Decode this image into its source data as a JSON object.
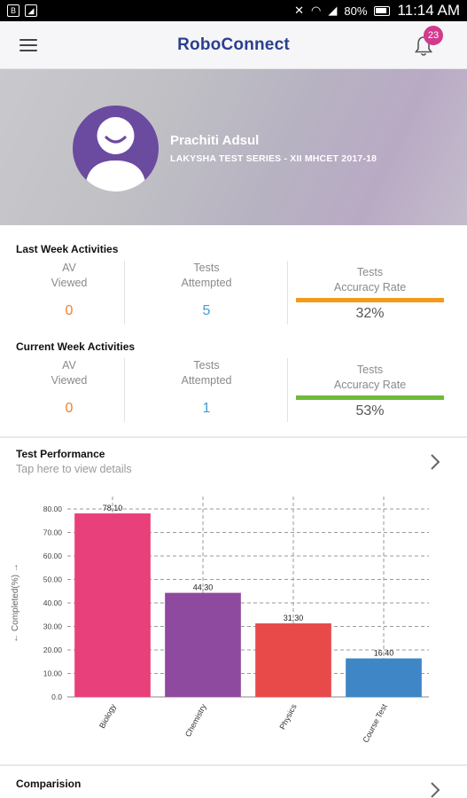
{
  "status_bar": {
    "battery": "80%",
    "time": "11:14 AM"
  },
  "app_bar": {
    "title": "RoboConnect",
    "notification_count": "23"
  },
  "profile": {
    "name": "Prachiti Adsul",
    "course": "LAKYSHA TEST SERIES - XII MHCET 2017-18"
  },
  "last_week": {
    "title": "Last Week Activities",
    "av_label_1": "AV",
    "av_label_2": "Viewed",
    "av_value": "0",
    "tests_label_1": "Tests",
    "tests_label_2": "Attempted",
    "tests_value": "5",
    "acc_label_1": "Tests",
    "acc_label_2": "Accuracy Rate",
    "acc_value": "32%"
  },
  "current_week": {
    "title": "Current Week Activities",
    "av_label_1": "AV",
    "av_label_2": "Viewed",
    "av_value": "0",
    "tests_label_1": "Tests",
    "tests_label_2": "Attempted",
    "tests_value": "1",
    "acc_label_1": "Tests",
    "acc_label_2": "Accuracy Rate",
    "acc_value": "53%"
  },
  "colors": {
    "last_week_accuracy_bar": "#f39a1a",
    "current_week_accuracy_bar": "#6dbb3a",
    "brand": "#2b3f8f",
    "badge": "#d23a8e"
  },
  "test_performance": {
    "title": "Test Performance",
    "subtitle": "Tap here to view details"
  },
  "comparison": {
    "title": "Comparision"
  },
  "chart_data": {
    "type": "bar",
    "categories": [
      "Biology",
      "Chemistry",
      "Physics",
      "Course Test"
    ],
    "values": [
      78.1,
      44.3,
      31.3,
      16.4
    ],
    "value_labels": [
      "78.10",
      "44.30",
      "31.30",
      "16.40"
    ],
    "colors": [
      "#e8407a",
      "#8e4a9e",
      "#e84a4a",
      "#3e86c6"
    ],
    "ylabel": "← Completed(%) →",
    "ylim": [
      0,
      80
    ],
    "yticks": [
      "0.0",
      "10.00",
      "20.00",
      "30.00",
      "40.00",
      "50.00",
      "60.00",
      "70.00",
      "80.00"
    ],
    "grid": true
  }
}
